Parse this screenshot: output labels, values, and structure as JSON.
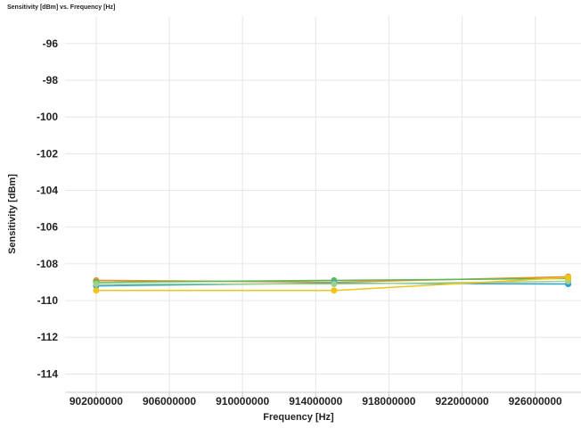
{
  "chart_data": {
    "type": "line",
    "title": "Sensitivity [dBm] vs. Frequency [Hz]",
    "xlabel": "Frequency [Hz]",
    "ylabel": "Sensitivity [dBm]",
    "xlim": [
      900300000,
      928500000
    ],
    "ylim": [
      -115,
      -94.5
    ],
    "xticks": [
      902000000,
      906000000,
      910000000,
      914000000,
      918000000,
      922000000,
      926000000
    ],
    "yticks": [
      -96,
      -98,
      -100,
      -102,
      -104,
      -106,
      -108,
      -110,
      -112,
      -114
    ],
    "grid": true,
    "legend": "none",
    "x": [
      902000000,
      915000000,
      927800000
    ],
    "series": [
      {
        "color": "#e8922b",
        "values": [
          -108.9,
          -109.0,
          -108.7
        ]
      },
      {
        "color": "#5cb85c",
        "values": [
          -109.0,
          -108.9,
          -108.8
        ]
      },
      {
        "color": "#2a9fd6",
        "values": [
          -109.2,
          -109.05,
          -109.1
        ]
      },
      {
        "color": "#9fd18a",
        "values": [
          -109.1,
          -109.1,
          -108.95
        ]
      },
      {
        "color": "#f0c419",
        "values": [
          -109.45,
          -109.45,
          -108.75
        ]
      }
    ]
  }
}
